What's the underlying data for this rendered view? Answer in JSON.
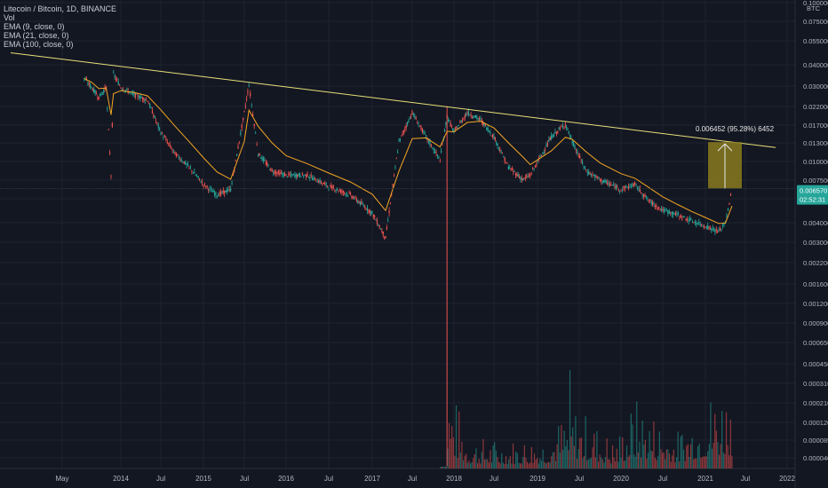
{
  "legend": {
    "title": "Litecoin / Bitcoin, 1D, BINANCE",
    "vol": "Vol",
    "ema9": "EMA (9, close, 0)",
    "ema21": "EMA (21, close, 0)",
    "ema100": "EMA (100, close, 0)"
  },
  "axis": {
    "currency": "BTC",
    "price_label": "0.006570",
    "countdown_label": "02:52:31"
  },
  "measure": {
    "label": "0.006452 (95.28%) 6452"
  },
  "colors": {
    "background": "#131722",
    "grid": "#1f2330",
    "up": "#26a69a",
    "down": "#ef5350",
    "ema": "#f5a623",
    "trendline": "#e8e07a",
    "measure_box": "#8a7a1e",
    "price_tag": "#26a69a"
  },
  "chart_data": {
    "type": "candlestick",
    "symbol": "Litecoin / Bitcoin",
    "interval": "1D",
    "exchange": "BINANCE",
    "y_scale": "log",
    "y_ticks": [
      "0.100000",
      "0.075000",
      "0.055000",
      "0.040000",
      "0.030000",
      "0.022000",
      "0.017000",
      "0.013000",
      "0.010000",
      "0.007500",
      "0.005500",
      "0.004000",
      "0.003000",
      "0.002200",
      "0.001600",
      "0.001200",
      "0.000900",
      "0.000650",
      "0.000450",
      "0.000310",
      "0.000210",
      "0.000120",
      "0.000085",
      "0.000040"
    ],
    "x_ticks": [
      "May",
      "2014",
      "Jul",
      "2015",
      "Jul",
      "2016",
      "Jul",
      "2017",
      "Jul",
      "2018",
      "Jul",
      "2019",
      "Jul",
      "2020",
      "Jul",
      "2021",
      "Jul",
      "2022"
    ],
    "price_series": [
      {
        "date": "2013-08",
        "close": 0.033
      },
      {
        "date": "2013-09",
        "close": 0.029
      },
      {
        "date": "2013-10",
        "close": 0.025
      },
      {
        "date": "2013-11",
        "close": 0.029
      },
      {
        "date": "2013-11-20",
        "close": 0.008
      },
      {
        "date": "2013-12",
        "close": 0.035
      },
      {
        "date": "2014-01",
        "close": 0.029
      },
      {
        "date": "2014-03",
        "close": 0.026
      },
      {
        "date": "2014-05",
        "close": 0.024
      },
      {
        "date": "2014-07",
        "close": 0.015
      },
      {
        "date": "2014-09",
        "close": 0.011
      },
      {
        "date": "2014-11",
        "close": 0.009
      },
      {
        "date": "2015-01",
        "close": 0.007
      },
      {
        "date": "2015-03",
        "close": 0.006
      },
      {
        "date": "2015-05",
        "close": 0.0065
      },
      {
        "date": "2015-07",
        "close": 0.02
      },
      {
        "date": "2015-07-20",
        "close": 0.03
      },
      {
        "date": "2015-09",
        "close": 0.011
      },
      {
        "date": "2015-11",
        "close": 0.0085
      },
      {
        "date": "2016-01",
        "close": 0.008
      },
      {
        "date": "2016-04",
        "close": 0.008
      },
      {
        "date": "2016-07",
        "close": 0.0068
      },
      {
        "date": "2016-10",
        "close": 0.006
      },
      {
        "date": "2017-01",
        "close": 0.0046
      },
      {
        "date": "2017-03",
        "close": 0.0032
      },
      {
        "date": "2017-05",
        "close": 0.013
      },
      {
        "date": "2017-07",
        "close": 0.02
      },
      {
        "date": "2017-09",
        "close": 0.014
      },
      {
        "date": "2017-11",
        "close": 0.01
      },
      {
        "date": "2017-12",
        "close": 0.019
      },
      {
        "date": "2018-01",
        "close": 0.015
      },
      {
        "date": "2018-03",
        "close": 0.02
      },
      {
        "date": "2018-05",
        "close": 0.018
      },
      {
        "date": "2018-07",
        "close": 0.014
      },
      {
        "date": "2018-09",
        "close": 0.009
      },
      {
        "date": "2018-11",
        "close": 0.0075
      },
      {
        "date": "2018-12",
        "close": 0.008
      },
      {
        "date": "2019-03",
        "close": 0.014
      },
      {
        "date": "2019-05",
        "close": 0.017
      },
      {
        "date": "2019-06",
        "close": 0.013
      },
      {
        "date": "2019-08",
        "close": 0.0085
      },
      {
        "date": "2019-10",
        "close": 0.0075
      },
      {
        "date": "2020-01",
        "close": 0.0065
      },
      {
        "date": "2020-03",
        "close": 0.007
      },
      {
        "date": "2020-05",
        "close": 0.0055
      },
      {
        "date": "2020-07",
        "close": 0.0048
      },
      {
        "date": "2020-09",
        "close": 0.0045
      },
      {
        "date": "2020-11",
        "close": 0.0041
      },
      {
        "date": "2021-01",
        "close": 0.0038
      },
      {
        "date": "2021-03",
        "close": 0.0035
      },
      {
        "date": "2021-04",
        "close": 0.004
      },
      {
        "date": "2021-05",
        "close": 0.0065
      }
    ],
    "trendline": [
      {
        "date": "2013-03",
        "value": 0.048
      },
      {
        "date": "2021-12",
        "value": 0.012
      }
    ],
    "measure": {
      "from": 0.0066,
      "to": 0.013,
      "change": "0.006452 (95.28%) 6452"
    },
    "volume_series": [
      {
        "date": "2017-12",
        "value": 1.0
      },
      {
        "date": "2018-03",
        "value": 0.35
      },
      {
        "date": "2018-08",
        "value": 0.3
      },
      {
        "date": "2019-02",
        "value": 0.35
      },
      {
        "date": "2019-06",
        "value": 0.7
      },
      {
        "date": "2019-12",
        "value": 0.3
      },
      {
        "date": "2020-03",
        "value": 0.75
      },
      {
        "date": "2020-09",
        "value": 0.4
      },
      {
        "date": "2021-01",
        "value": 0.8
      },
      {
        "date": "2021-04",
        "value": 0.95
      },
      {
        "date": "2021-05",
        "value": 0.85
      }
    ],
    "last_price": "0.006570"
  }
}
